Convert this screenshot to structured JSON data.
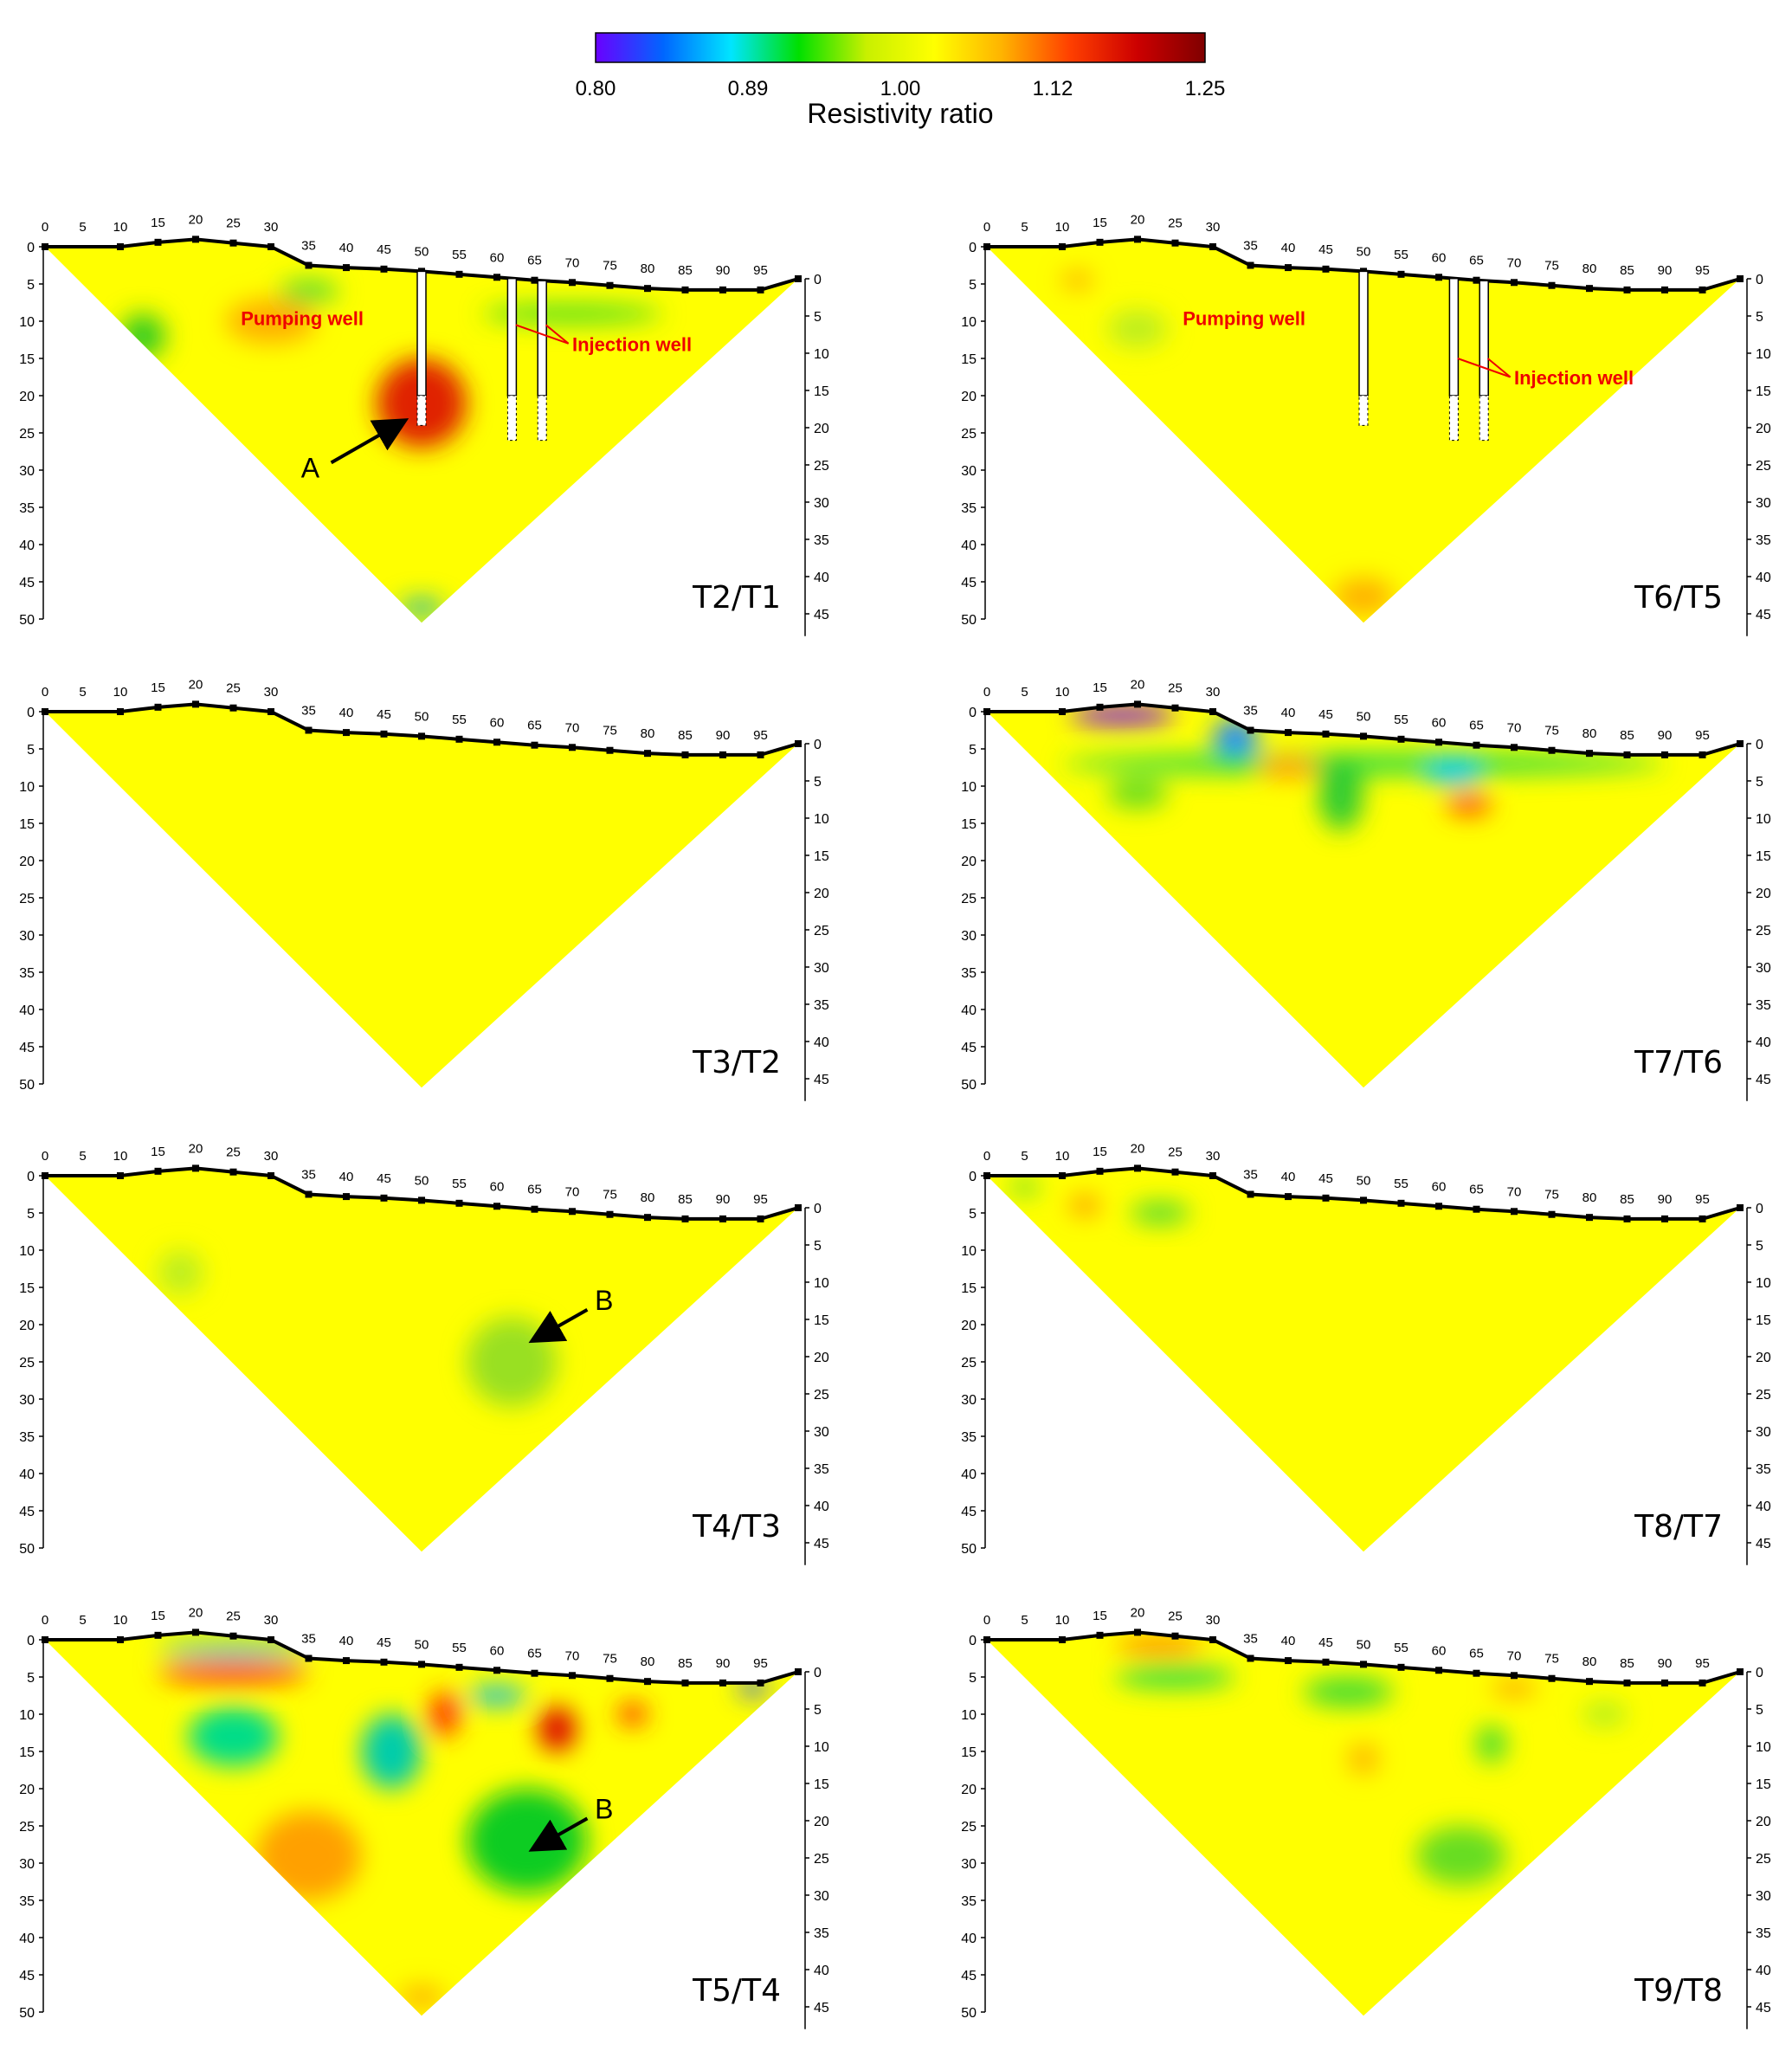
{
  "colorbar": {
    "title": "Resistivity ratio",
    "ticks": [
      "0.80",
      "0.89",
      "1.00",
      "1.12",
      "1.25"
    ],
    "colors": [
      "#6a00ff",
      "#0066ff",
      "#00e5ff",
      "#00e000",
      "#c8f000",
      "#ffff00",
      "#ffb300",
      "#ff4000",
      "#cc0000",
      "#800000"
    ]
  },
  "axes": {
    "top_ticks": [
      "0",
      "5",
      "10",
      "15",
      "20",
      "25",
      "30",
      "35",
      "40",
      "45",
      "50",
      "55",
      "60",
      "65",
      "70",
      "75",
      "80",
      "85",
      "90",
      "95"
    ],
    "left_ticks": [
      "0",
      "5",
      "10",
      "15",
      "20",
      "25",
      "30",
      "35",
      "40",
      "45",
      "50"
    ],
    "right_ticks": [
      "0",
      "5",
      "10",
      "15",
      "20",
      "25",
      "30",
      "35",
      "40",
      "45"
    ]
  },
  "annotations": {
    "pumping_well": "Pumping well",
    "injection_well": "Injection well",
    "marker_a": "A",
    "marker_b": "B"
  },
  "panels": [
    {
      "label": "T2/T1",
      "anomalies": [
        {
          "x": 50,
          "z": 21,
          "rx": 6,
          "rz": 6,
          "color": "#e02000"
        },
        {
          "x": 30,
          "z": 10,
          "rx": 6,
          "rz": 3,
          "color": "#ffb000"
        },
        {
          "x": 13,
          "z": 12,
          "rx": 3,
          "rz": 3,
          "color": "#33cc22"
        },
        {
          "x": 50,
          "z": 48.5,
          "rx": 3,
          "rz": 1.2,
          "color": "#22bbaa"
        },
        {
          "x": 70,
          "z": 9,
          "rx": 12,
          "rz": 1.2,
          "color": "#44dd22"
        },
        {
          "x": 35,
          "z": 6,
          "rx": 4,
          "rz": 1.5,
          "color": "#55dd33"
        }
      ],
      "wells": true
    },
    {
      "label": "T6/T5",
      "anomalies": [
        {
          "x": 50,
          "z": 47,
          "rx": 4,
          "rz": 2.5,
          "color": "#ffb000"
        },
        {
          "x": 20,
          "z": 11,
          "rx": 4,
          "rz": 2.5,
          "color": "#bbee22"
        },
        {
          "x": 12,
          "z": 4.5,
          "rx": 2,
          "rz": 1,
          "color": "#ff9900"
        }
      ],
      "wells": true
    },
    {
      "label": "T3/T2",
      "anomalies": [],
      "wells": false
    },
    {
      "label": "T7/T6",
      "anomalies": [
        {
          "x": 18,
          "z": 0.5,
          "rx": 7,
          "rz": 1.2,
          "color": "#7700ff"
        },
        {
          "x": 33,
          "z": 3.5,
          "rx": 3,
          "rz": 2.5,
          "color": "#2288ff"
        },
        {
          "x": 50,
          "z": 7,
          "rx": 40,
          "rz": 1.5,
          "color": "#33dd44"
        },
        {
          "x": 47,
          "z": 11,
          "rx": 3,
          "rz": 5,
          "color": "#33cc33"
        },
        {
          "x": 62,
          "z": 8,
          "rx": 4,
          "rz": 2,
          "color": "#00ccee"
        },
        {
          "x": 64,
          "z": 12.5,
          "rx": 3,
          "rz": 1.5,
          "color": "#ff5500"
        },
        {
          "x": 20,
          "z": 11,
          "rx": 4,
          "rz": 2,
          "color": "#66dd22"
        },
        {
          "x": 40,
          "z": 7.5,
          "rx": 4,
          "rz": 1.5,
          "color": "#ffa000"
        }
      ],
      "wells": false
    },
    {
      "label": "T4/T3",
      "anomalies": [
        {
          "x": 62,
          "z": 25,
          "rx": 6,
          "rz": 6,
          "color": "#99e022"
        },
        {
          "x": 18,
          "z": 13,
          "rx": 3,
          "rz": 3,
          "color": "#bbee22"
        }
      ],
      "wells": false,
      "marker_b": {
        "x": 65,
        "z": 22
      }
    },
    {
      "label": "T8/T7",
      "anomalies": [
        {
          "x": 13,
          "z": 4,
          "rx": 2,
          "rz": 1.2,
          "color": "#ff8800"
        },
        {
          "x": 23,
          "z": 5,
          "rx": 4,
          "rz": 1.5,
          "color": "#55dd33"
        },
        {
          "x": 5,
          "z": 1.5,
          "rx": 2,
          "rz": 1,
          "color": "#55dd33"
        }
      ],
      "wells": false
    },
    {
      "label": "T5/T4",
      "anomalies": [
        {
          "x": 25,
          "z": 4.5,
          "rx": 10,
          "rz": 1.5,
          "color": "#ff4400"
        },
        {
          "x": 25,
          "z": 1.5,
          "rx": 10,
          "rz": 1,
          "color": "#22bbdd"
        },
        {
          "x": 25,
          "z": 13,
          "rx": 6,
          "rz": 4,
          "color": "#00dd88"
        },
        {
          "x": 46,
          "z": 15,
          "rx": 4,
          "rz": 5,
          "color": "#00ccaa"
        },
        {
          "x": 64,
          "z": 27,
          "rx": 8,
          "rz": 7,
          "color": "#11cc22"
        },
        {
          "x": 35,
          "z": 29,
          "rx": 7,
          "rz": 6,
          "color": "#ffa000"
        },
        {
          "x": 68,
          "z": 12,
          "rx": 2.5,
          "rz": 3,
          "color": "#dd0000"
        },
        {
          "x": 53,
          "z": 10,
          "rx": 2,
          "rz": 3,
          "color": "#ff3300"
        },
        {
          "x": 60,
          "z": 7.5,
          "rx": 4,
          "rz": 1.2,
          "color": "#00bbee"
        },
        {
          "x": 78,
          "z": 10,
          "rx": 2,
          "rz": 1.5,
          "color": "#ff3300"
        },
        {
          "x": 94,
          "z": 6.5,
          "rx": 2,
          "rz": 1,
          "color": "#2255ff"
        },
        {
          "x": 50,
          "z": 48,
          "rx": 3,
          "rz": 1.5,
          "color": "#ffb000"
        }
      ],
      "wells": false,
      "marker_b": {
        "x": 65,
        "z": 28
      }
    },
    {
      "label": "T9/T8",
      "anomalies": [
        {
          "x": 25,
          "z": 5,
          "rx": 8,
          "rz": 1.5,
          "color": "#33dd44"
        },
        {
          "x": 48,
          "z": 7,
          "rx": 6,
          "rz": 2,
          "color": "#44dd33"
        },
        {
          "x": 63,
          "z": 29,
          "rx": 6,
          "rz": 4,
          "color": "#66dd22"
        },
        {
          "x": 67,
          "z": 14,
          "rx": 2,
          "rz": 2.5,
          "color": "#44dd33"
        },
        {
          "x": 50,
          "z": 16,
          "rx": 2,
          "rz": 2,
          "color": "#ffb000"
        },
        {
          "x": 23,
          "z": 1,
          "rx": 6,
          "rz": 0.8,
          "color": "#ff4400"
        },
        {
          "x": 70,
          "z": 6.5,
          "rx": 3,
          "rz": 1,
          "color": "#ff9900"
        },
        {
          "x": 82,
          "z": 10,
          "rx": 3,
          "rz": 1.5,
          "color": "#aaee22"
        }
      ],
      "wells": false
    }
  ]
}
